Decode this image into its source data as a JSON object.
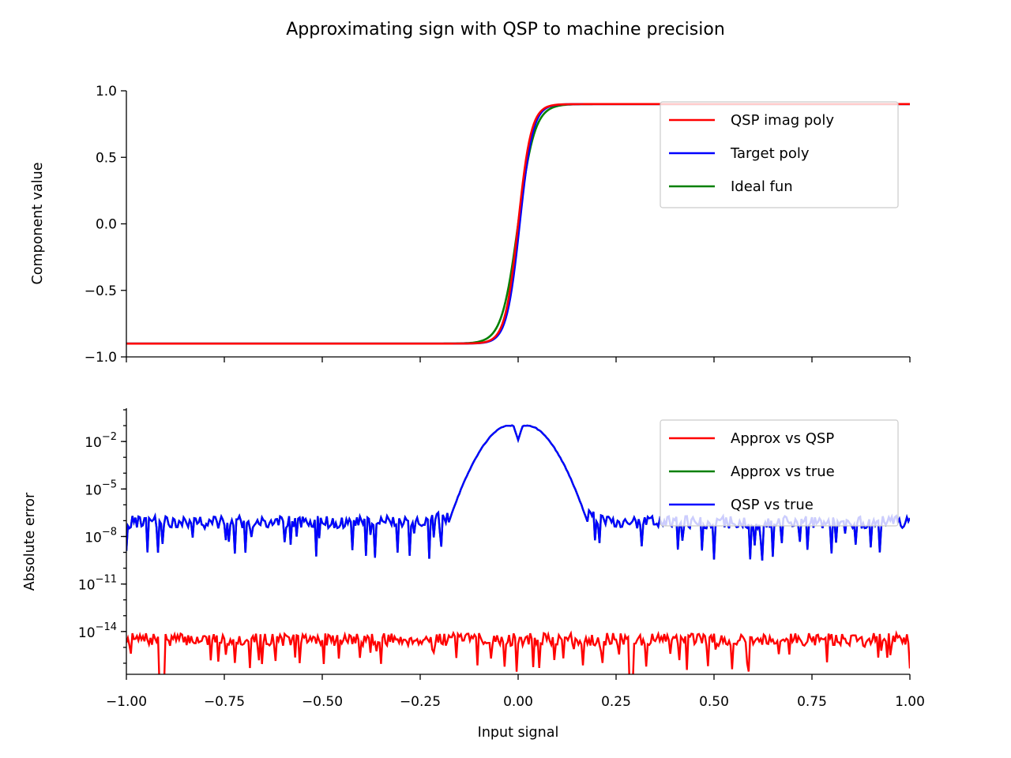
{
  "figure": {
    "title": "Approximating sign with QSP to machine precision"
  },
  "chart_data": [
    {
      "type": "line",
      "id": "components",
      "xlabel": "",
      "ylabel": "Component value",
      "xlim": [
        -1.0,
        1.0
      ],
      "ylim": [
        -1.0,
        1.0
      ],
      "xticks": [
        -1.0,
        -0.75,
        -0.5,
        -0.25,
        0.0,
        0.25,
        0.5,
        0.75,
        1.0
      ],
      "yticks": [
        {
          "value": -1.0,
          "label": "−1.0"
        },
        {
          "value": -0.5,
          "label": "−0.5"
        },
        {
          "value": 0.0,
          "label": "0.0"
        },
        {
          "value": 0.5,
          "label": "0.5"
        },
        {
          "value": 1.0,
          "label": "1.0"
        }
      ],
      "grid": false,
      "legend": "upper right",
      "legend_entries": [
        "QSP imag poly",
        "Target poly",
        "Ideal fun"
      ],
      "series": [
        {
          "name": "QSP imag poly",
          "color": "#ff0000",
          "kind": "sigmoid",
          "plateau": 0.9,
          "k": 30
        },
        {
          "name": "Target poly",
          "color": "#0000ff",
          "kind": "sigmoid",
          "plateau": 0.9,
          "k": 30
        },
        {
          "name": "Ideal fun",
          "color": "#008000",
          "kind": "sigmoid",
          "plateau": 0.9,
          "k": 24
        }
      ]
    },
    {
      "type": "line",
      "id": "errors",
      "xlabel": "Input signal",
      "ylabel": "Absolute error",
      "yscale": "log",
      "xlim": [
        -1.0,
        1.0
      ],
      "ylim_log10": [
        -16.7,
        0.1
      ],
      "xticks": [
        {
          "value": -1.0,
          "label": "−1.00"
        },
        {
          "value": -0.75,
          "label": "−0.75"
        },
        {
          "value": -0.5,
          "label": "−0.50"
        },
        {
          "value": -0.25,
          "label": "−0.25"
        },
        {
          "value": 0.0,
          "label": "0.00"
        },
        {
          "value": 0.25,
          "label": "0.25"
        },
        {
          "value": 0.5,
          "label": "0.50"
        },
        {
          "value": 0.75,
          "label": "0.75"
        },
        {
          "value": 1.0,
          "label": "1.00"
        }
      ],
      "yticks": [
        {
          "exp": -2,
          "base": "10",
          "sup": "−2"
        },
        {
          "exp": -5,
          "base": "10",
          "sup": "−5"
        },
        {
          "exp": -8,
          "base": "10",
          "sup": "−8"
        },
        {
          "exp": -11,
          "base": "10",
          "sup": "−11"
        },
        {
          "exp": -14,
          "base": "10",
          "sup": "−14"
        }
      ],
      "grid": false,
      "legend": "upper right",
      "legend_entries": [
        "Approx vs QSP",
        "Approx vs true",
        "QSP vs true"
      ],
      "series": [
        {
          "name": "Approx vs QSP",
          "color": "#ff0000",
          "level_log10": -14.5
        },
        {
          "name": "Approx vs true",
          "color": "#008000",
          "level_log10": -7.6,
          "peak_log10": -1.0
        },
        {
          "name": "QSP vs true",
          "color": "#0000ff",
          "level_log10": -7.6,
          "peak_log10": -1.0
        }
      ]
    }
  ],
  "colors": {
    "red": "#ff0000",
    "blue": "#0000ff",
    "green": "#008000"
  }
}
